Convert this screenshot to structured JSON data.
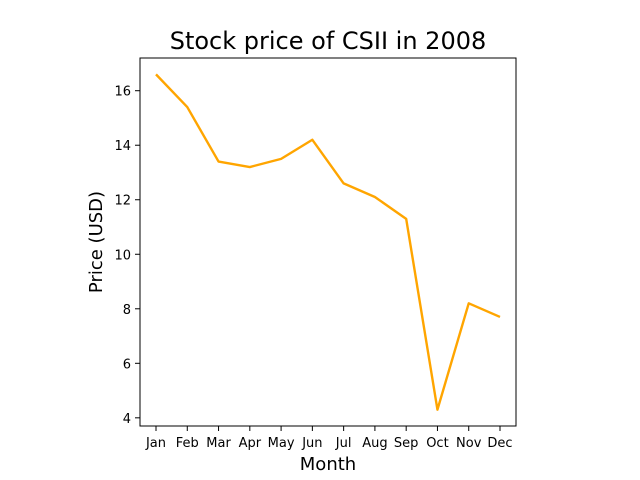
{
  "chart_data": {
    "type": "line",
    "title": "Stock price of CSII in 2008",
    "xlabel": "Month",
    "ylabel": "Price (USD)",
    "categories": [
      "Jan",
      "Feb",
      "Mar",
      "Apr",
      "May",
      "Jun",
      "Jul",
      "Aug",
      "Sep",
      "Oct",
      "Nov",
      "Dec"
    ],
    "series": [
      {
        "values": [
          16.6,
          15.4,
          13.4,
          13.2,
          13.5,
          14.2,
          12.6,
          12.1,
          11.3,
          4.3,
          8.2,
          7.7
        ],
        "color": "#ffa500"
      }
    ],
    "yticks": [
      4,
      6,
      8,
      10,
      12,
      14,
      16
    ],
    "ylim": [
      3.7,
      17.2
    ],
    "grid": false,
    "legend": "none"
  }
}
